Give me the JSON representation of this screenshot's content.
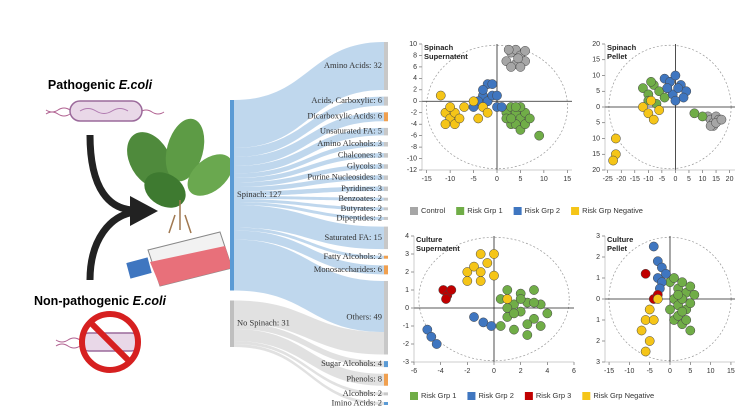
{
  "illustration": {
    "top_label": [
      "Pathogenic ",
      "E.coli"
    ],
    "bottom_label": [
      "Non-pathogenic ",
      "E.coli"
    ]
  },
  "chart_data": [
    {
      "type": "sankey",
      "sources": {
        "value_labels": [
          "Spinach: 127",
          "No Spinach: 31"
        ],
        "values": [
          127,
          31
        ],
        "colors": [
          "#5b9bd5",
          "#bfbfbf"
        ]
      },
      "targets": {
        "value_labels": [
          "Amino Acids: 32",
          "Acids, Carboxylic: 6",
          "Dicarboxylic Acids: 6",
          "Unsaturated FA: 5",
          "Amino Alcohols: 3",
          "Chalcones: 3",
          "Glycols: 3",
          "Purine Nucleosides: 3",
          "Pyridines: 3",
          "Benzoates: 2",
          "Butyrates: 2",
          "Dipeptides: 2",
          "Saturated FA: 15",
          "Fatty Alcohols: 2",
          "Monosaccharides: 6",
          "Others: 49",
          "Sugar Alcohols: 4",
          "Phenols: 8",
          "Alcohols: 2",
          "Imino Acids: 2"
        ],
        "values": [
          32,
          6,
          6,
          5,
          3,
          3,
          3,
          3,
          3,
          2,
          2,
          2,
          15,
          2,
          6,
          49,
          4,
          8,
          2,
          2
        ],
        "colors": [
          "#c8c8c8",
          "#c8c8c8",
          "#f0a050",
          "#c8c8c8",
          "#c8c8c8",
          "#c8c8c8",
          "#c8c8c8",
          "#c8c8c8",
          "#c8c8c8",
          "#c8c8c8",
          "#c8c8c8",
          "#c8c8c8",
          "#c8c8c8",
          "#f0a050",
          "#f0a050",
          "#c8c8c8",
          "#5b9bd5",
          "#f0a050",
          "#c8c8c8",
          "#5b9bd5"
        ]
      },
      "links": {
        "source": [
          0,
          0,
          0,
          0,
          0,
          0,
          0,
          0,
          0,
          0,
          0,
          0,
          0,
          0,
          0,
          0,
          1,
          1,
          1,
          1,
          1
        ],
        "target": [
          0,
          1,
          2,
          3,
          4,
          5,
          6,
          7,
          8,
          9,
          10,
          11,
          12,
          13,
          14,
          15,
          15,
          16,
          17,
          18,
          19
        ],
        "values": [
          32,
          6,
          6,
          5,
          3,
          3,
          3,
          3,
          3,
          2,
          2,
          2,
          15,
          2,
          6,
          34,
          15,
          4,
          8,
          2,
          2
        ]
      },
      "link_colors": [
        "#b4d0ea",
        "#dcdcdc"
      ]
    },
    {
      "type": "scatter",
      "title": [
        "Spinach",
        "Supernatent"
      ],
      "legend": true,
      "xlim": [
        -16,
        16
      ],
      "xticks": [
        -15,
        -10,
        -5,
        0,
        5,
        10,
        15
      ],
      "ylim": [
        -12,
        10
      ],
      "yticks": [
        -12,
        -10,
        -8,
        -6,
        -4,
        -2,
        0,
        2,
        4,
        6,
        8,
        10
      ],
      "series": [
        {
          "name": "Control",
          "color": "#a6a6a6",
          "x": [
            2,
            3,
            4,
            5,
            6,
            4,
            3,
            5,
            6,
            2.5,
            4.5
          ],
          "values": [
            7,
            8.5,
            9,
            8,
            7,
            6.5,
            6,
            6,
            8.8,
            9,
            7.5
          ]
        },
        {
          "name": "Risk Grp 1",
          "color": "#70ad47",
          "x": [
            2,
            3,
            4,
            5,
            6,
            3,
            4,
            5,
            2,
            6,
            7,
            9,
            3,
            5,
            4
          ],
          "values": [
            -2,
            -1,
            -2,
            -3,
            -2,
            -4,
            -4,
            -5,
            -3,
            -4,
            -3,
            -6,
            -3,
            -1,
            -1
          ]
        },
        {
          "name": "Risk Grp 2",
          "color": "#3f76c0",
          "x": [
            -3,
            -2,
            -1,
            -2,
            -3,
            0,
            -4,
            -5,
            -1,
            1,
            0
          ],
          "values": [
            1,
            3,
            3,
            0,
            2,
            -1,
            0,
            -1,
            1,
            -1,
            1
          ]
        },
        {
          "name": "Risk Grp Negative",
          "color": "#f5c518",
          "x": [
            -12,
            -11,
            -10,
            -11,
            -9,
            -9,
            -7,
            -8,
            -5,
            -4,
            -3,
            -2,
            -10
          ],
          "values": [
            1,
            -2,
            -3,
            -4,
            -2,
            -4,
            -1,
            -3,
            0,
            -3,
            -1,
            -2,
            -1
          ]
        }
      ]
    },
    {
      "type": "scatter",
      "title": [
        "Spinach",
        "Pellet"
      ],
      "legend": false,
      "xlim": [
        -26,
        22
      ],
      "xticks": [
        -25,
        -20,
        -15,
        -10,
        -5,
        0,
        5,
        10,
        15,
        20
      ],
      "ylim": [
        -20,
        20
      ],
      "yticks": [
        {
          "value": -20,
          "label": "20"
        },
        {
          "value": -15,
          "label": "15"
        },
        {
          "value": -10,
          "label": "10"
        },
        {
          "value": -5,
          "label": "5"
        },
        0,
        5,
        10,
        15,
        20
      ],
      "series": [
        {
          "name": "Control",
          "color": "#a6a6a6",
          "x": [
            12,
            13,
            14,
            15,
            16,
            14,
            13,
            15,
            17
          ],
          "values": [
            -3,
            -4,
            -5,
            -3,
            -4,
            -6,
            -6,
            -5,
            -4
          ]
        },
        {
          "name": "Risk Grp 1",
          "color": "#70ad47",
          "x": [
            -12,
            -10,
            -8,
            -6,
            -4,
            -10,
            -7,
            -3,
            -2,
            -9,
            10,
            7
          ],
          "values": [
            6,
            4,
            7,
            5,
            3,
            2,
            1,
            6,
            8,
            8,
            -3,
            -2
          ]
        },
        {
          "name": "Risk Grp 2",
          "color": "#3f76c0",
          "x": [
            -4,
            -2,
            0,
            2,
            4,
            -1,
            1,
            3,
            -3,
            0
          ],
          "values": [
            9,
            8,
            10,
            7,
            5,
            4,
            6,
            3,
            6,
            2
          ]
        },
        {
          "name": "Risk Grp Negative",
          "color": "#f5c518",
          "x": [
            -12,
            -10,
            -8,
            -6,
            -9,
            -22,
            -22,
            -23
          ],
          "values": [
            0,
            -2,
            -4,
            -1,
            2,
            -10,
            -15,
            -17
          ]
        }
      ]
    },
    {
      "type": "scatter",
      "title": [
        "Culture",
        "Supernatent"
      ],
      "legend": true,
      "xlim": [
        -6,
        6
      ],
      "xticks": [
        -6,
        -4,
        -2,
        0,
        2,
        4,
        6
      ],
      "ylim": [
        -3,
        4
      ],
      "yticks": [
        -3,
        -2,
        -1,
        0,
        1,
        2,
        3,
        4
      ],
      "series": [
        {
          "name": "Risk Grp 1",
          "color": "#70ad47",
          "x": [
            0.5,
            1,
            1.5,
            2,
            2.5,
            3,
            3.5,
            4,
            1,
            2,
            3,
            0.5,
            1.5,
            2.5,
            3.5,
            1,
            2,
            3,
            1.5,
            2.5
          ],
          "values": [
            0.5,
            1,
            0.2,
            0.8,
            0.3,
            1,
            0.2,
            -0.3,
            -0.5,
            -0.2,
            -0.6,
            -1,
            -1.2,
            -0.9,
            -1,
            0,
            0.5,
            0.3,
            -0.3,
            -1.5
          ]
        },
        {
          "name": "Risk Grp 2",
          "color": "#3f76c0",
          "x": [
            -5,
            -4.7,
            -4.3,
            -1.5,
            -0.8,
            -0.2
          ],
          "values": [
            -1.2,
            -1.6,
            -2,
            -0.5,
            -0.8,
            -1
          ]
        },
        {
          "name": "Risk Grp 3",
          "color": "#c00000",
          "x": [
            -3.8,
            -3.5,
            -3.2,
            -3.6
          ],
          "values": [
            1,
            0.7,
            1,
            0.5
          ]
        },
        {
          "name": "Risk Grp Negative",
          "color": "#f5c518",
          "x": [
            -1,
            0,
            -2,
            -1.5,
            -1,
            -0.5,
            -2,
            0,
            -1,
            1
          ],
          "values": [
            3,
            3,
            2,
            2.3,
            2,
            2.5,
            1.5,
            1.8,
            1.5,
            0.5
          ]
        }
      ]
    },
    {
      "type": "scatter",
      "title": [
        "Culture",
        "Pellet"
      ],
      "legend": false,
      "xlim": [
        -16,
        16
      ],
      "xticks": [
        -15,
        -10,
        -5,
        0,
        5,
        10,
        15
      ],
      "ylim": [
        -3,
        3
      ],
      "yticks": [
        {
          "value": -3,
          "label": "3"
        },
        {
          "value": -2,
          "label": "2"
        },
        {
          "value": -1,
          "label": "1"
        },
        0,
        1,
        2,
        3
      ],
      "series": [
        {
          "name": "Risk Grp 1",
          "color": "#70ad47",
          "x": [
            0,
            1,
            2,
            3,
            4,
            5,
            6,
            1,
            2,
            3,
            4,
            5,
            0,
            1,
            2,
            3,
            4,
            5,
            2,
            3
          ],
          "values": [
            0.8,
            1,
            0.5,
            0.8,
            0.3,
            0.6,
            0.2,
            0,
            -0.3,
            0,
            -0.5,
            -0.2,
            -0.5,
            -1,
            -0.8,
            -1.2,
            -1,
            -1.5,
            0.2,
            -0.6
          ]
        },
        {
          "name": "Risk Grp 2",
          "color": "#3f76c0",
          "x": [
            -4,
            -3,
            -2,
            -3,
            -2,
            -1,
            -2.5
          ],
          "values": [
            2.5,
            1.8,
            1.5,
            1,
            0.8,
            1.2,
            0.5
          ]
        },
        {
          "name": "Risk Grp 3",
          "color": "#c00000",
          "x": [
            -6,
            -4,
            -3
          ],
          "values": [
            1.2,
            0,
            0.2
          ]
        },
        {
          "name": "Risk Grp Negative",
          "color": "#f5c518",
          "x": [
            -5,
            -7,
            -6,
            -5,
            -4,
            -6,
            -3
          ],
          "values": [
            -0.5,
            -1.5,
            -1,
            -2,
            -1,
            -2.5,
            0
          ]
        }
      ]
    }
  ]
}
